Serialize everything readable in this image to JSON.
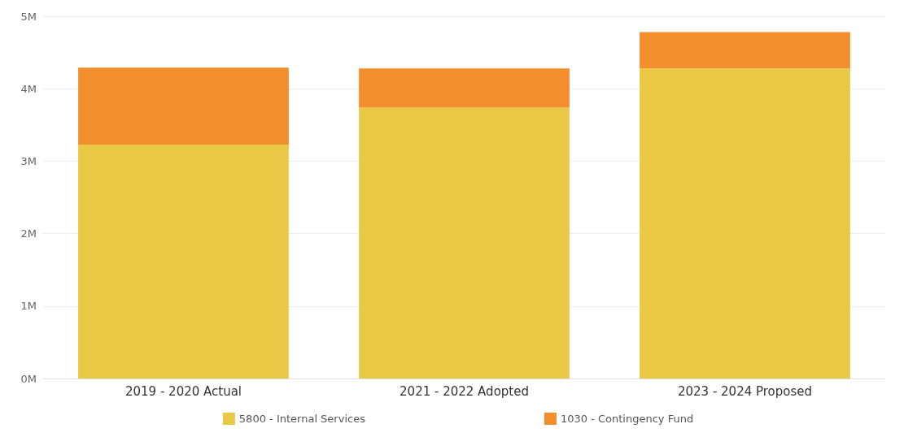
{
  "chart_data": {
    "type": "bar",
    "stacked": true,
    "categories": [
      "2019 - 2020 Actual",
      "2021 - 2022 Adopted",
      "2023 - 2024 Proposed"
    ],
    "series": [
      {
        "name": "5800 - Internal Services",
        "color": "#e9c846",
        "values": [
          3.23,
          3.74,
          4.28
        ]
      },
      {
        "name": "1030 - Contingency Fund",
        "color": "#f28e2b",
        "values": [
          1.06,
          0.54,
          0.5
        ]
      }
    ],
    "ylim": [
      0,
      5
    ],
    "yticks": [
      {
        "value": 0,
        "label": "0M"
      },
      {
        "value": 1,
        "label": "1M"
      },
      {
        "value": 2,
        "label": "2M"
      },
      {
        "value": 3,
        "label": "3M"
      },
      {
        "value": 4,
        "label": "4M"
      },
      {
        "value": 5,
        "label": "5M"
      }
    ],
    "grid": "y",
    "legend": "bottom"
  }
}
